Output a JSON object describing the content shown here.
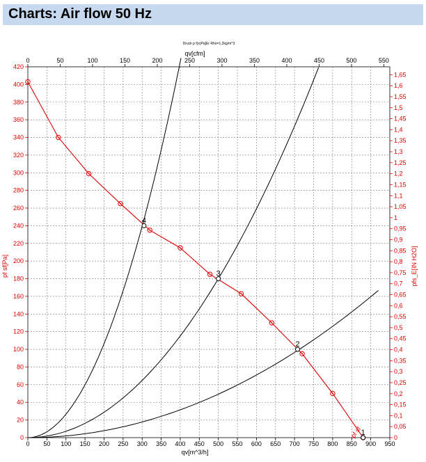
{
  "header": {
    "title": "Charts: Air flow 50 Hz"
  },
  "chart_data": {
    "type": "line",
    "title": "Charts: Air flow 50 Hz",
    "subtitle": "Druck p f(x)Pa]Er Rho=1,2kg/m^3",
    "xlabel": "qv[m^3/h]",
    "x2label": "qv[cfm]",
    "ylabel": "pf sf[Pa]",
    "y2label": "pfs_E[IN H2O]",
    "xlim": [
      0,
      950
    ],
    "ylim": [
      0,
      420
    ],
    "x2lim": [
      0,
      559.2
    ],
    "y2lim": [
      0,
      1.686
    ],
    "x_ticks": [
      "0",
      "50",
      "100",
      "150",
      "200",
      "250",
      "300",
      "350",
      "400",
      "450",
      "500",
      "550",
      "600",
      "650",
      "700",
      "750",
      "800",
      "850",
      "900",
      "950"
    ],
    "y_ticks": [
      "0",
      "20",
      "40",
      "60",
      "80",
      "100",
      "120",
      "140",
      "160",
      "180",
      "200",
      "220",
      "240",
      "260",
      "280",
      "300",
      "320",
      "340",
      "360",
      "380",
      "400",
      "420"
    ],
    "x2_ticks": [
      "0",
      "50",
      "100",
      "150",
      "200",
      "250",
      "300",
      "350",
      "400",
      "450",
      "500",
      "550"
    ],
    "y2_ticks": [
      "0",
      "0,05",
      "0,1",
      "0,15",
      "0,2",
      "0,25",
      "0,3",
      "0,35",
      "0,4",
      "0,45",
      "0,5",
      "0,55",
      "0,6",
      "0,65",
      "0,7",
      "0,75",
      "0,8",
      "0,85",
      "0,9",
      "0,95",
      "1",
      "1,05",
      "1,1",
      "1,15",
      "1,2",
      "1,25",
      "1,3",
      "1,35",
      "1,4",
      "1,45",
      "1,5",
      "1,55",
      "1,6",
      "1,65"
    ],
    "fan_curve": {
      "name": "pf sf",
      "color": "#e00000",
      "x": [
        0,
        80,
        160,
        243,
        320,
        400,
        478,
        560,
        640,
        720,
        800,
        880
      ],
      "y": [
        403,
        340,
        299,
        265,
        235,
        215,
        185,
        163,
        130,
        95,
        50,
        0
      ],
      "marker": "circle",
      "label": "pf sf"
    },
    "system_curves": [
      {
        "name": "4",
        "k": 0.00266,
        "x_max": 402
      },
      {
        "name": "3",
        "k": 0.00072,
        "x_max": 763
      },
      {
        "name": "2",
        "k": 0.000197,
        "x_max": 920
      },
      {
        "name": "1",
        "k": 0.0,
        "x_max": 880
      }
    ],
    "operating_points": [
      {
        "label": "4",
        "x": 305,
        "y": 240
      },
      {
        "label": "3",
        "x": 500,
        "y": 180
      },
      {
        "label": "2",
        "x": 708,
        "y": 100
      },
      {
        "label": "1",
        "x": 880,
        "y": 0
      }
    ],
    "grid": true
  }
}
